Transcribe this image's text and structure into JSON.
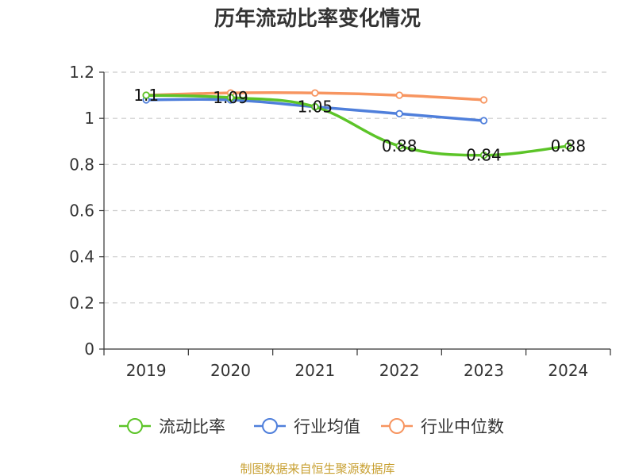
{
  "chart_data": {
    "type": "line",
    "title": "历年流动比率变化情况",
    "xlabel": "",
    "ylabel": "",
    "categories": [
      "2019",
      "2020",
      "2021",
      "2022",
      "2023",
      "2024"
    ],
    "ylim": [
      0,
      1.2
    ],
    "yticks": [
      0,
      0.2,
      0.4,
      0.6,
      0.8,
      1,
      1.2
    ],
    "ytick_labels": [
      "0",
      "0.2",
      "0.4",
      "0.6",
      "0.8",
      "1",
      "1.2"
    ],
    "grid": true,
    "legend_position": "bottom",
    "series": [
      {
        "name": "流动比率",
        "color": "#5cc428",
        "values": [
          1.1,
          1.09,
          1.05,
          0.88,
          0.84,
          0.88
        ],
        "labels": [
          "1.1",
          "1.09",
          "1.05",
          "0.88",
          "0.84",
          "0.88"
        ],
        "show_labels": true
      },
      {
        "name": "行业均值",
        "color": "#4f7fdb",
        "values": [
          1.08,
          1.08,
          1.05,
          1.02,
          0.99,
          null
        ],
        "show_labels": false
      },
      {
        "name": "行业中位数",
        "color": "#f79560",
        "values": [
          1.1,
          1.11,
          1.11,
          1.1,
          1.08,
          null
        ],
        "show_labels": false
      }
    ]
  },
  "source_text": "制图数据来自恒生聚源数据库"
}
